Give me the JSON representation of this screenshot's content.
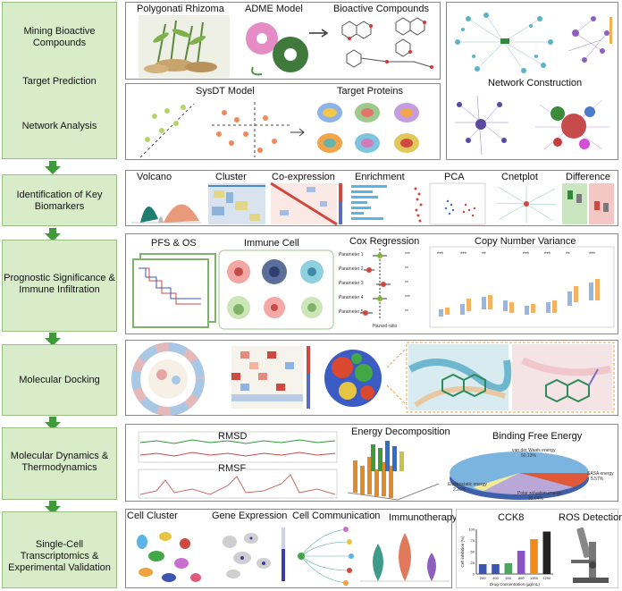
{
  "side_labels": {
    "mining": "Mining Bioactive Compounds",
    "target_prediction": "Target Prediction",
    "network_analysis": "Network Analysis",
    "key_biomarkers": "Identification of Key Biomarkers",
    "prognostic": "Prognostic Significance & Immune Infiltration",
    "docking": "Molecular Docking",
    "dynamics": "Molecular Dynamics & Thermodynamics",
    "single_cell": "Single-Cell Transcriptomics & Experimental Validation"
  },
  "row1": {
    "rhizoma": "Polygonati Rhizoma",
    "adme": "ADME Model",
    "bioactive": "Bioactive Compounds",
    "sysdt": "SysDT Model",
    "targets": "Target Proteins",
    "network": "Network Construction"
  },
  "row2": {
    "volcano": "Volcano",
    "cluster": "Cluster",
    "coexpression": "Co-expression",
    "enrichment": "Enrichment",
    "pca": "PCA",
    "cnetplot": "Cnetplot",
    "difference": "Difference"
  },
  "row3": {
    "pfs": "PFS & OS",
    "immune": "Immune Cell",
    "cox": "Cox Regression",
    "cnv": "Copy Number Variance",
    "params": [
      "Parameter 1",
      "Parameter 2",
      "Parameter 3",
      "Parameter 4",
      "Parameter 5"
    ],
    "sig": [
      "***",
      "**",
      "**",
      "***",
      "**"
    ],
    "hazard": "Hazard ratio"
  },
  "row5": {
    "rmsd": "RMSD",
    "rmsf": "RMSF",
    "energy_decomp": "Energy Decomposition",
    "binding": "Binding Free Energy",
    "pie_labels": {
      "vdw": "van der Waals energy",
      "vdw_val": "60.13%",
      "sasa": "SASA energy",
      "sasa_val": "5.57%",
      "elec": "Electrostatic energy",
      "elec_val": "2.26%",
      "polar": "Polar solvation energy",
      "polar_val": "32.04%"
    }
  },
  "row6": {
    "cell_cluster": "Cell Cluster",
    "gene_expr": "Gene Expression",
    "cell_comm": "Cell Communication",
    "immuno": "Immunotherapy",
    "cck8": "CCK8",
    "ros": "ROS Detection",
    "cck8_ylabel": "Cell inhibition (%)",
    "cck8_xlabel": "Drug Concentration (μg/mL)"
  },
  "chart_data": {
    "type": "bar",
    "title": "CCK8",
    "categories": [
      "200",
      "400",
      "600",
      "800",
      "1000",
      "1200"
    ],
    "values": [
      22,
      22,
      24,
      52,
      78,
      95
    ],
    "ylim": [
      0,
      100
    ],
    "yticks": [
      "0",
      "25",
      "50",
      "75",
      "100"
    ],
    "xlabel": "Drug Concentration (μg/mL)",
    "ylabel": "Cell inhibition (%)",
    "colors": [
      "#3d55b0",
      "#3d55b0",
      "#4aa65a",
      "#8a52c7",
      "#f08b1c",
      "#222222"
    ]
  }
}
